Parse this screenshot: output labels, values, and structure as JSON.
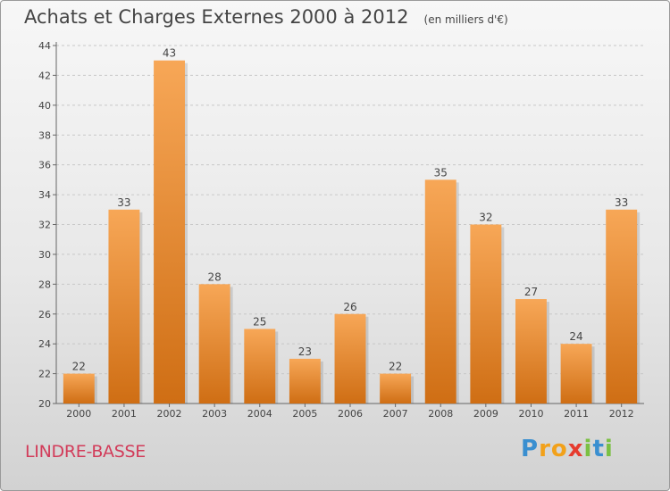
{
  "header": {
    "title": "Achats et Charges Externes 2000 à 2012",
    "subtitle": "(en milliers d'€)"
  },
  "footer": {
    "commune": "LINDRE-BASSE",
    "logo_letters": [
      {
        "ch": "P",
        "color": "#3a8fd0"
      },
      {
        "ch": "r",
        "color": "#f2a11a"
      },
      {
        "ch": "o",
        "color": "#f2a11a"
      },
      {
        "ch": "x",
        "color": "#e63b2e"
      },
      {
        "ch": "i",
        "color": "#7bc043"
      },
      {
        "ch": "t",
        "color": "#3a8fd0"
      },
      {
        "ch": "i",
        "color": "#7bc043"
      }
    ]
  },
  "chart_data": {
    "type": "bar",
    "title": "Achats et Charges Externes 2000 à 2012",
    "subtitle": "(en milliers d'€)",
    "categories": [
      "2000",
      "2001",
      "2002",
      "2003",
      "2004",
      "2005",
      "2006",
      "2007",
      "2008",
      "2009",
      "2010",
      "2011",
      "2012"
    ],
    "values": [
      22,
      33,
      43,
      28,
      25,
      23,
      26,
      22,
      35,
      32,
      27,
      24,
      33
    ],
    "ylim": [
      20,
      44
    ],
    "yticks": [
      20,
      22,
      24,
      26,
      28,
      30,
      32,
      34,
      36,
      38,
      40,
      42,
      44
    ],
    "grid": true,
    "bar_color": "#f0922e",
    "xlabel": "",
    "ylabel": ""
  }
}
